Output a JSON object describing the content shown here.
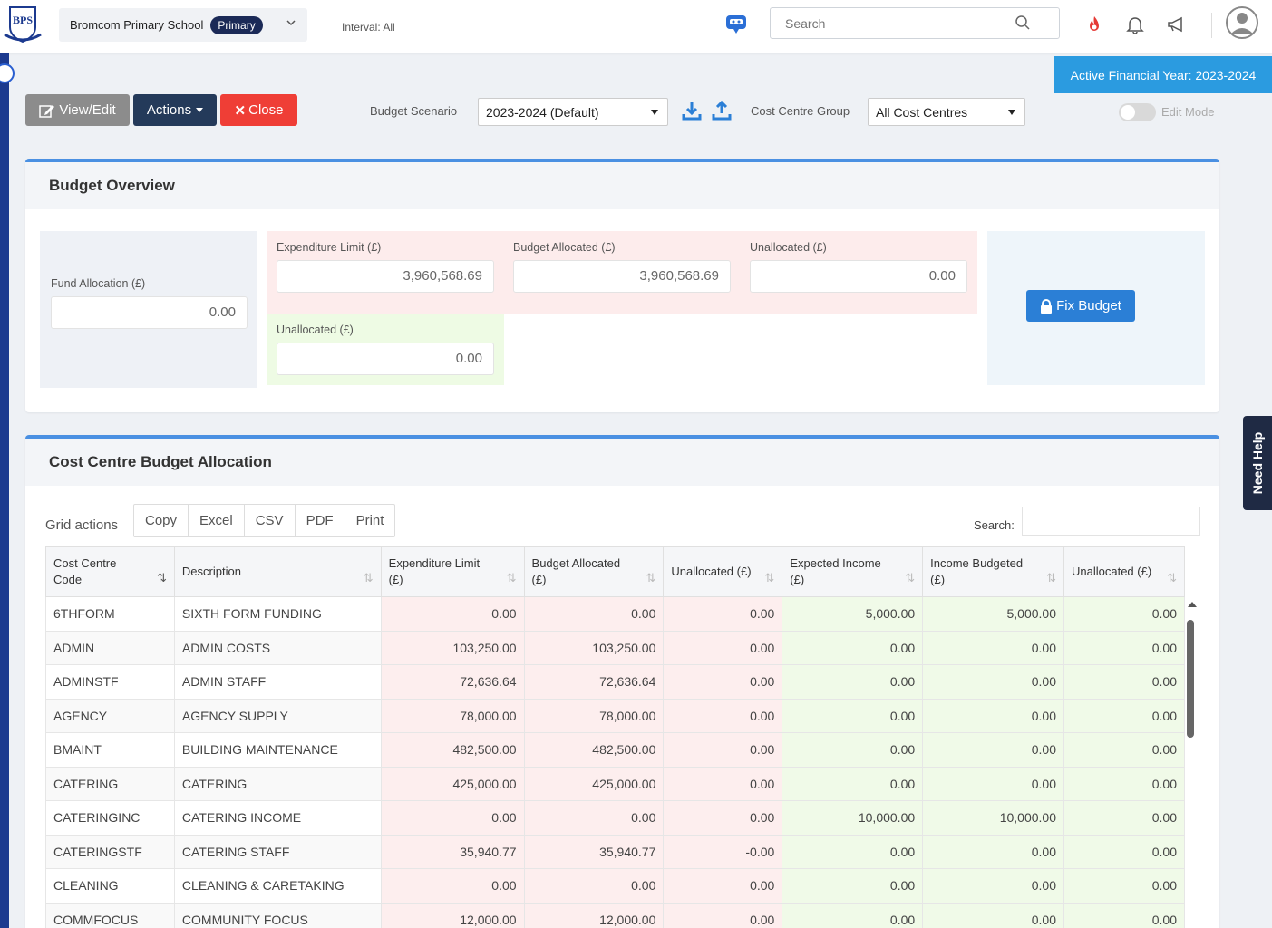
{
  "header": {
    "logo_text": "BPS",
    "school_name": "Bromcom Primary School",
    "school_badge": "Primary",
    "interval": "Interval: All",
    "search_placeholder": "Search"
  },
  "financial_year": "Active Financial Year: 2023-2024",
  "toolbar": {
    "view_edit": "View/Edit",
    "actions": "Actions",
    "close": "Close",
    "budget_scenario_label": "Budget Scenario",
    "budget_scenario_value": "2023-2024 (Default)",
    "cost_centre_group_label": "Cost Centre Group",
    "cost_centre_group_value": "All Cost Centres",
    "edit_mode_label": "Edit Mode",
    "edit_mode_on": false
  },
  "overview": {
    "title": "Budget Overview",
    "fund_allocation_label": "Fund Allocation (£)",
    "fund_allocation_value": "0.00",
    "expenditure_limit_label": "Expenditure Limit (£)",
    "expenditure_limit_value": "3,960,568.69",
    "budget_allocated_label": "Budget Allocated (£)",
    "budget_allocated_value": "3,960,568.69",
    "unallocated_label": "Unallocated (£)",
    "unallocated_value": "0.00",
    "income_unallocated_label": "Unallocated (£)",
    "income_unallocated_value": "0.00",
    "fix_budget": "Fix Budget"
  },
  "allocation": {
    "title": "Cost Centre Budget Allocation",
    "grid_actions_label": "Grid actions",
    "grid_actions": [
      "Copy",
      "Excel",
      "CSV",
      "PDF",
      "Print"
    ],
    "search_label": "Search:",
    "columns": [
      "Cost Centre Code",
      "Description",
      "Expenditure Limit (£)",
      "Budget Allocated (£)",
      "Unallocated (£)",
      "Expected Income (£)",
      "Income Budgeted (£)",
      "Unallocated (£)"
    ],
    "rows": [
      [
        "6THFORM",
        "SIXTH FORM FUNDING",
        "0.00",
        "0.00",
        "0.00",
        "5,000.00",
        "5,000.00",
        "0.00"
      ],
      [
        "ADMIN",
        "ADMIN COSTS",
        "103,250.00",
        "103,250.00",
        "0.00",
        "0.00",
        "0.00",
        "0.00"
      ],
      [
        "ADMINSTF",
        "ADMIN STAFF",
        "72,636.64",
        "72,636.64",
        "0.00",
        "0.00",
        "0.00",
        "0.00"
      ],
      [
        "AGENCY",
        "AGENCY SUPPLY",
        "78,000.00",
        "78,000.00",
        "0.00",
        "0.00",
        "0.00",
        "0.00"
      ],
      [
        "BMAINT",
        "BUILDING MAINTENANCE",
        "482,500.00",
        "482,500.00",
        "0.00",
        "0.00",
        "0.00",
        "0.00"
      ],
      [
        "CATERING",
        "CATERING",
        "425,000.00",
        "425,000.00",
        "0.00",
        "0.00",
        "0.00",
        "0.00"
      ],
      [
        "CATERINGINC",
        "CATERING INCOME",
        "0.00",
        "0.00",
        "0.00",
        "10,000.00",
        "10,000.00",
        "0.00"
      ],
      [
        "CATERINGSTF",
        "CATERING STAFF",
        "35,940.77",
        "35,940.77",
        "-0.00",
        "0.00",
        "0.00",
        "0.00"
      ],
      [
        "CLEANING",
        "CLEANING & CARETAKING",
        "0.00",
        "0.00",
        "0.00",
        "0.00",
        "0.00",
        "0.00"
      ],
      [
        "COMMFOCUS",
        "COMMUNITY FOCUS",
        "12,000.00",
        "12,000.00",
        "0.00",
        "0.00",
        "0.00",
        "0.00"
      ]
    ]
  },
  "need_help": "Need Help",
  "colors": {
    "accent": "#2b9be0",
    "close_red": "#ef3e36",
    "expenditure_tint": "#fdeeee",
    "income_tint": "#f0fae8"
  }
}
